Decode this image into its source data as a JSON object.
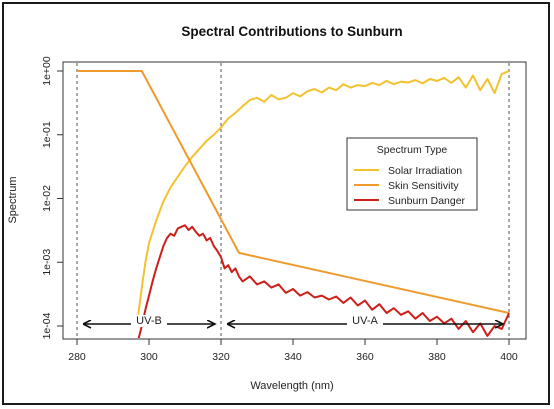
{
  "chart_data": {
    "type": "line",
    "title": "Spectral Contributions to Sunburn",
    "xlabel": "Wavelength (nm)",
    "ylabel": "Spectrum",
    "x_ticks": [
      "280",
      "300",
      "320",
      "340",
      "360",
      "380",
      "400"
    ],
    "y_ticks": [
      "1e-04",
      "1e-03",
      "1e-02",
      "1e-01",
      "1e+00"
    ],
    "xlim": [
      280,
      400
    ],
    "ylim_log10": [
      -4,
      0
    ],
    "y_scale": "log",
    "grid": false,
    "legend": {
      "title": "Spectrum Type",
      "placement": "right-center"
    },
    "vertical_reference_lines_x": [
      280,
      320,
      400
    ],
    "series": [
      {
        "name": "Solar Irradiation",
        "color": "#f2c230",
        "x": [
          297,
          298,
          299,
          300,
          302,
          304,
          306,
          308,
          310,
          312,
          314,
          316,
          318,
          320,
          322,
          324,
          326,
          328,
          330,
          332,
          334,
          336,
          338,
          340,
          342,
          344,
          346,
          348,
          350,
          352,
          354,
          356,
          358,
          360,
          362,
          364,
          366,
          368,
          370,
          372,
          374,
          376,
          378,
          380,
          382,
          384,
          386,
          388,
          390,
          392,
          394,
          396,
          398,
          400
        ],
        "y": [
          0.00015,
          0.0004,
          0.001,
          0.002,
          0.0045,
          0.009,
          0.015,
          0.022,
          0.032,
          0.045,
          0.06,
          0.08,
          0.1,
          0.13,
          0.18,
          0.22,
          0.28,
          0.35,
          0.38,
          0.33,
          0.42,
          0.36,
          0.38,
          0.45,
          0.4,
          0.48,
          0.52,
          0.46,
          0.55,
          0.5,
          0.62,
          0.55,
          0.6,
          0.58,
          0.65,
          0.6,
          0.7,
          0.62,
          0.68,
          0.66,
          0.72,
          0.64,
          0.75,
          0.7,
          0.78,
          0.65,
          0.8,
          0.55,
          0.85,
          0.5,
          0.75,
          0.45,
          0.9,
          1.0
        ]
      },
      {
        "name": "Skin Sensitivity",
        "color": "#ef9a2d",
        "x": [
          280,
          298,
          325,
          400
        ],
        "y": [
          1.0,
          1.0,
          0.0014,
          0.00016
        ]
      },
      {
        "name": "Sunburn Danger",
        "color": "#cc1f1a",
        "x": [
          297,
          298,
          299,
          300,
          301,
          302,
          303,
          304,
          305,
          306,
          307,
          308,
          309,
          310,
          311,
          312,
          313,
          314,
          315,
          316,
          317,
          318,
          319,
          320,
          321,
          322,
          323,
          324,
          325,
          326,
          328,
          330,
          332,
          334,
          336,
          338,
          340,
          342,
          344,
          346,
          348,
          350,
          352,
          354,
          356,
          358,
          360,
          362,
          364,
          366,
          368,
          370,
          372,
          374,
          376,
          378,
          380,
          382,
          384,
          386,
          388,
          390,
          392,
          394,
          396,
          398,
          400
        ],
        "y": [
          6e-05,
          0.0001,
          0.00018,
          0.0003,
          0.0005,
          0.0008,
          0.0012,
          0.0018,
          0.0024,
          0.0028,
          0.0026,
          0.0034,
          0.0036,
          0.0038,
          0.0032,
          0.0036,
          0.003,
          0.0026,
          0.0028,
          0.0022,
          0.0024,
          0.0018,
          0.0015,
          0.0012,
          0.0008,
          0.0009,
          0.0007,
          0.0008,
          0.0006,
          0.0005,
          0.0006,
          0.00045,
          0.0005,
          0.0004,
          0.00045,
          0.00033,
          0.00038,
          0.0003,
          0.00034,
          0.00028,
          0.0003,
          0.00026,
          0.00029,
          0.00023,
          0.00028,
          0.00021,
          0.00025,
          0.00018,
          0.00022,
          0.00016,
          0.00019,
          0.00015,
          0.00017,
          0.00013,
          0.00016,
          0.00012,
          0.00014,
          0.00011,
          0.00013,
          9e-05,
          0.00012,
          8e-05,
          0.00011,
          7e-05,
          0.0001,
          9e-05,
          0.00016
        ]
      }
    ],
    "annotations": [
      {
        "text": "UV-B",
        "x_start": 280,
        "x_end": 320
      },
      {
        "text": "UV-A",
        "x_start": 320,
        "x_end": 400
      }
    ]
  }
}
